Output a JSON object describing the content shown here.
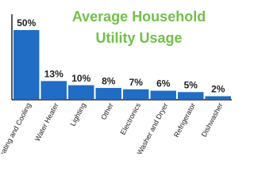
{
  "chart_data": {
    "type": "bar",
    "title": "Average Household Utility Usage",
    "categories": [
      "Heating and Cooling",
      "Water Heater",
      "Lighting",
      "Other",
      "Electronics",
      "Washer and Dryer",
      "Refrigerator",
      "Dishwasher"
    ],
    "values": [
      50,
      13,
      10,
      8,
      7,
      6,
      5,
      2
    ],
    "value_labels": [
      "50%",
      "13%",
      "10%",
      "8%",
      "7%",
      "6%",
      "5%",
      "2%"
    ],
    "color": "#1f6dc5",
    "title_color": "#72c04a"
  }
}
